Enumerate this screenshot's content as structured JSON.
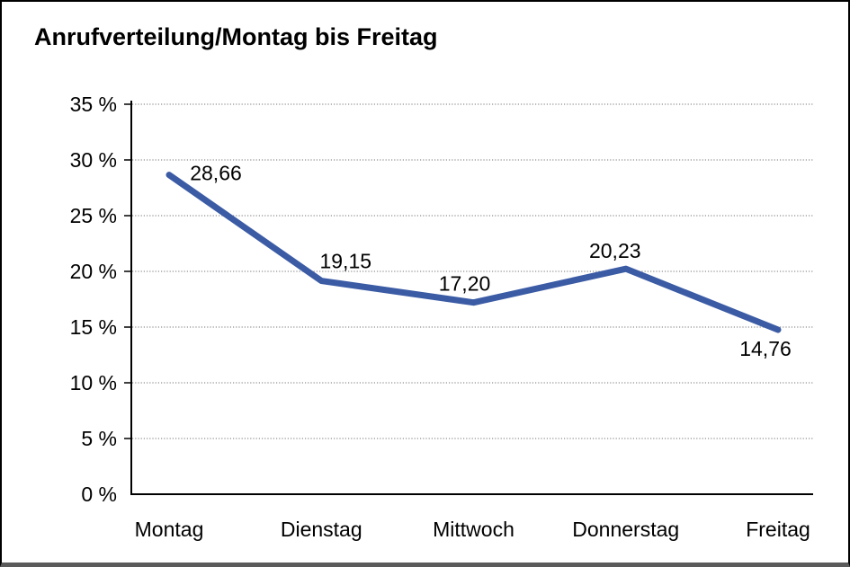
{
  "frame": {
    "background": "#ffffff",
    "border_color": "#000000",
    "bottom_edge_color": "#5a5a5a"
  },
  "chart_data": {
    "type": "line",
    "title": "Anrufverteilung/Montag bis Freitag",
    "categories": [
      "Montag",
      "Dienstag",
      "Mittwoch",
      "Donnerstag",
      "Freitag"
    ],
    "values": [
      28.66,
      19.15,
      17.2,
      20.23,
      14.76
    ],
    "point_labels": [
      "28,66",
      "19,15",
      "17,20",
      "20,23",
      "14,76"
    ],
    "ylim": [
      0,
      35
    ],
    "ytick_step": 5,
    "ytick_labels": [
      "0 %",
      "5 %",
      "10 %",
      "15 %",
      "20 %",
      "25 %",
      "30 %",
      "35 %"
    ],
    "xlabel": "",
    "ylabel": "",
    "grid": "horizontal-dotted",
    "legend": "none",
    "line_color": "#3B5BA5",
    "axis_color": "#000000",
    "grid_color": "#8f8f8f",
    "text_color": "#000000"
  }
}
